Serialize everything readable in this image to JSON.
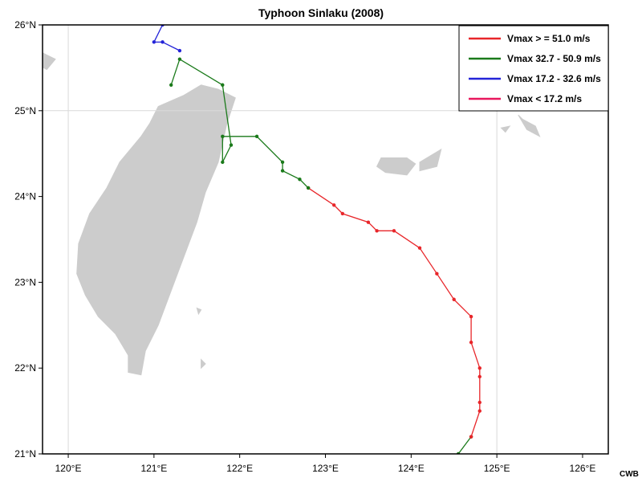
{
  "title": "Typhoon Sinlaku (2008)",
  "credit": "CWB",
  "colors": {
    "land": "#cccccc",
    "grid": "#d9d9d9",
    "frame": "#000000",
    "strong": "#e8262a",
    "medium": "#1a7a1a",
    "weak": "#2424d8",
    "depression": "#e8175d"
  },
  "map": {
    "lon_range": [
      119.7,
      126.3
    ],
    "lat_range": [
      21.0,
      26.0
    ],
    "lon_ticks": [
      {
        "value": 120,
        "label": "120°E"
      },
      {
        "value": 121,
        "label": "121°E"
      },
      {
        "value": 122,
        "label": "122°E"
      },
      {
        "value": 123,
        "label": "123°E"
      },
      {
        "value": 124,
        "label": "124°E"
      },
      {
        "value": 125,
        "label": "125°E"
      },
      {
        "value": 126,
        "label": "126°E"
      }
    ],
    "lat_ticks": [
      {
        "value": 21,
        "label": "21°N"
      },
      {
        "value": 22,
        "label": "22°N"
      },
      {
        "value": 23,
        "label": "23°N"
      },
      {
        "value": 24,
        "label": "24°N"
      },
      {
        "value": 25,
        "label": "25°N"
      },
      {
        "value": 26,
        "label": "26°N"
      }
    ],
    "grid_lines": {
      "lon": [
        120,
        125
      ],
      "lat": [
        25
      ]
    }
  },
  "legend": {
    "placement": "top-right",
    "items": [
      {
        "label": "Vmax > = 51.0 m/s",
        "color": "#e8262a"
      },
      {
        "label": "Vmax 32.7 -  50.9 m/s",
        "color": "#1a7a1a"
      },
      {
        "label": "Vmax 17.2 - 32.6 m/s",
        "color": "#2424d8"
      },
      {
        "label": "Vmax < 17.2 m/s",
        "color": "#e8175d"
      }
    ]
  },
  "track": [
    {
      "segment": "medium",
      "points": [
        [
          124.55,
          21.0
        ],
        [
          124.7,
          21.2
        ]
      ]
    },
    {
      "segment": "strong",
      "points": [
        [
          124.7,
          21.2
        ],
        [
          124.8,
          21.5
        ],
        [
          124.8,
          21.6
        ],
        [
          124.8,
          21.9
        ],
        [
          124.8,
          22.0
        ],
        [
          124.7,
          22.3
        ],
        [
          124.7,
          22.6
        ],
        [
          124.5,
          22.8
        ],
        [
          124.3,
          23.1
        ],
        [
          124.1,
          23.4
        ],
        [
          123.8,
          23.6
        ],
        [
          123.6,
          23.6
        ],
        [
          123.5,
          23.7
        ],
        [
          123.2,
          23.8
        ],
        [
          123.1,
          23.9
        ],
        [
          122.8,
          24.1
        ]
      ]
    },
    {
      "segment": "medium",
      "points": [
        [
          122.8,
          24.1
        ],
        [
          122.7,
          24.2
        ],
        [
          122.5,
          24.3
        ],
        [
          122.5,
          24.4
        ],
        [
          122.2,
          24.7
        ],
        [
          121.8,
          24.7
        ],
        [
          121.8,
          24.4
        ],
        [
          121.9,
          24.6
        ],
        [
          121.8,
          25.3
        ],
        [
          121.3,
          25.6
        ],
        [
          121.2,
          25.3
        ]
      ]
    },
    {
      "segment": "weak",
      "points": [
        [
          121.3,
          25.7
        ],
        [
          121.1,
          25.8
        ],
        [
          121.0,
          25.8
        ],
        [
          121.1,
          26.0
        ]
      ]
    }
  ],
  "land": {
    "taiwan": [
      [
        121.95,
        25.15
      ],
      [
        121.75,
        25.25
      ],
      [
        121.55,
        25.3
      ],
      [
        121.35,
        25.18
      ],
      [
        121.05,
        25.05
      ],
      [
        120.95,
        24.85
      ],
      [
        120.85,
        24.7
      ],
      [
        120.6,
        24.4
      ],
      [
        120.45,
        24.1
      ],
      [
        120.25,
        23.8
      ],
      [
        120.12,
        23.45
      ],
      [
        120.1,
        23.1
      ],
      [
        120.2,
        22.85
      ],
      [
        120.35,
        22.6
      ],
      [
        120.55,
        22.4
      ],
      [
        120.7,
        22.15
      ],
      [
        120.7,
        21.95
      ],
      [
        120.85,
        21.92
      ],
      [
        120.9,
        22.2
      ],
      [
        121.05,
        22.5
      ],
      [
        121.2,
        22.9
      ],
      [
        121.35,
        23.3
      ],
      [
        121.5,
        23.7
      ],
      [
        121.6,
        24.05
      ],
      [
        121.75,
        24.4
      ],
      [
        121.85,
        24.85
      ],
      [
        121.9,
        25.0
      ]
    ],
    "islands": [
      [
        [
          119.5,
          23.7
        ],
        [
          119.7,
          23.6
        ],
        [
          119.65,
          23.5
        ],
        [
          119.5,
          23.55
        ]
      ],
      [
        [
          119.65,
          25.7
        ],
        [
          119.75,
          25.65
        ],
        [
          119.85,
          25.6
        ],
        [
          119.75,
          25.48
        ],
        [
          119.62,
          25.55
        ]
      ],
      [
        [
          123.65,
          24.45
        ],
        [
          123.95,
          24.45
        ],
        [
          124.05,
          24.38
        ],
        [
          123.95,
          24.25
        ],
        [
          123.7,
          24.28
        ],
        [
          123.6,
          24.35
        ]
      ],
      [
        [
          124.1,
          24.4
        ],
        [
          124.35,
          24.55
        ],
        [
          124.3,
          24.35
        ],
        [
          124.1,
          24.3
        ]
      ],
      [
        [
          125.25,
          24.95
        ],
        [
          125.35,
          24.78
        ],
        [
          125.5,
          24.7
        ],
        [
          125.45,
          24.82
        ],
        [
          125.3,
          24.9
        ]
      ],
      [
        [
          125.05,
          24.8
        ],
        [
          125.15,
          24.82
        ],
        [
          125.1,
          24.75
        ]
      ],
      [
        [
          121.5,
          22.7
        ],
        [
          121.55,
          22.68
        ],
        [
          121.52,
          22.63
        ]
      ],
      [
        [
          121.55,
          22.1
        ],
        [
          121.6,
          22.05
        ],
        [
          121.55,
          22.0
        ]
      ]
    ]
  }
}
